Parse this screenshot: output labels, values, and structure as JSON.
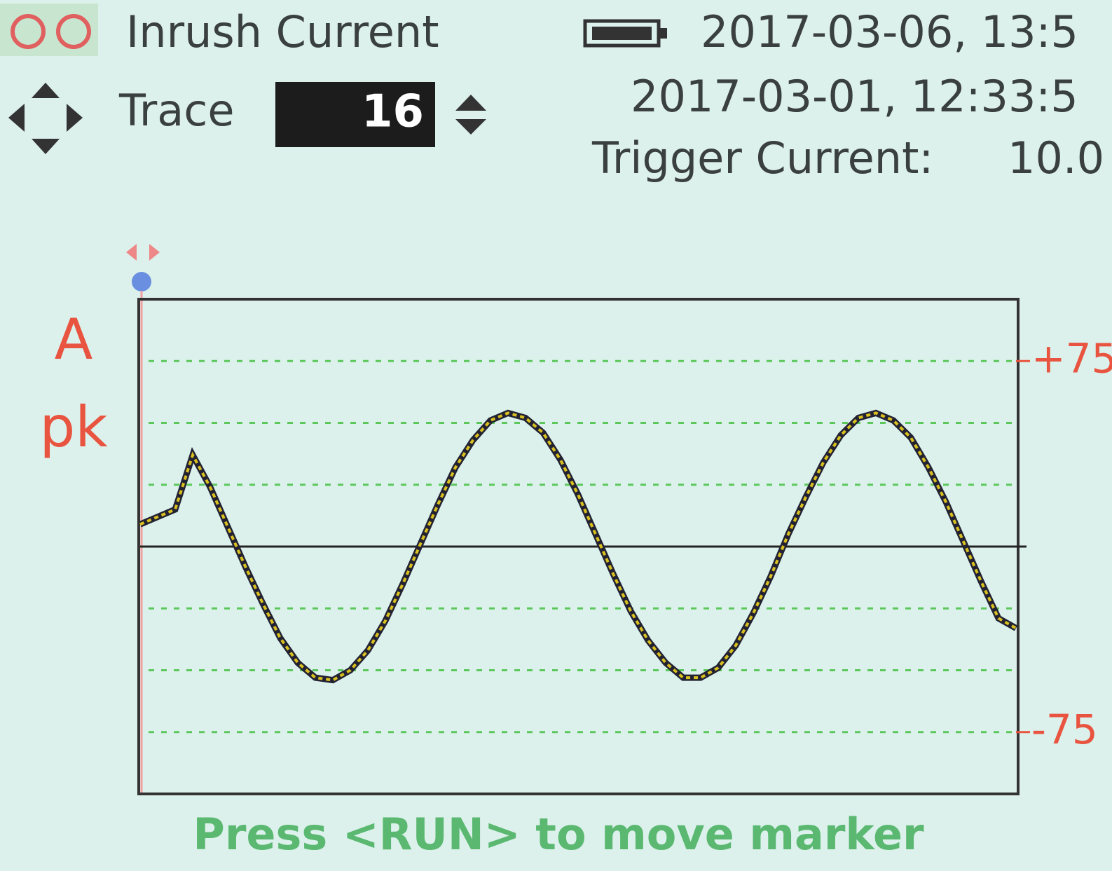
{
  "header": {
    "title": "Inrush Current",
    "datetime": "2017-03-06, 13:5",
    "trace_label": "Trace",
    "trace_value": "16",
    "trace_time": "2017-03-01, 12:33:5",
    "trigger_label": "Trigger Current:",
    "trigger_value": "10.0"
  },
  "chart_data": {
    "type": "line",
    "unit": "A",
    "unit2": "pk",
    "color": "#d8c020",
    "ylim": [
      -100,
      100
    ],
    "yticks": [
      {
        "value": 75,
        "label": "+75"
      },
      {
        "value": -75,
        "label": "-75"
      }
    ],
    "grid": [
      75,
      50,
      25,
      -25,
      -50,
      -75
    ],
    "values": [
      9,
      12,
      15,
      37,
      24,
      8,
      -8,
      -23,
      -37,
      -47,
      -53,
      -54,
      -50,
      -42,
      -30,
      -15,
      1,
      17,
      32,
      43,
      51,
      54,
      52,
      46,
      35,
      21,
      5,
      -11,
      -26,
      -38,
      -47,
      -53,
      -53,
      -49,
      -40,
      -27,
      -12,
      5,
      20,
      34,
      45,
      52,
      54,
      51,
      44,
      32,
      18,
      2,
      -14,
      -29,
      -33
    ]
  },
  "footer": {
    "hint": "Press <RUN> to move marker"
  }
}
